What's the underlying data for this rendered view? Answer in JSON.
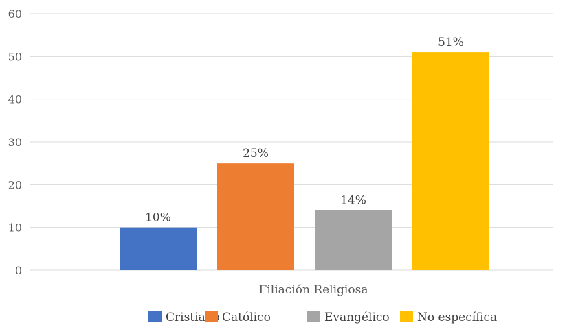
{
  "chart_data": {
    "type": "bar",
    "title": "",
    "xlabel": "Filiación Religiosa",
    "ylabel": "",
    "ylim": [
      0,
      60
    ],
    "yticks": [
      0,
      10,
      20,
      30,
      40,
      50,
      60
    ],
    "grid": true,
    "legend_position": "bottom",
    "series": [
      {
        "name": "Cristiano",
        "value": 10,
        "label": "10%",
        "color": "#4472C4"
      },
      {
        "name": "Católico",
        "value": 25,
        "label": "25%",
        "color": "#ED7D31"
      },
      {
        "name": "Evangélico",
        "value": 14,
        "label": "14%",
        "color": "#A5A5A5"
      },
      {
        "name": "No específica",
        "value": 51,
        "label": "51%",
        "color": "#FFC000"
      }
    ]
  }
}
